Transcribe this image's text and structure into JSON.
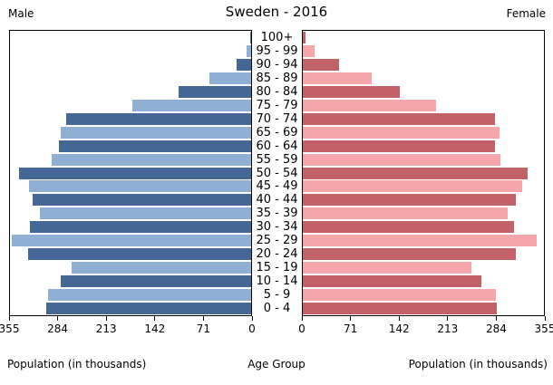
{
  "header": {
    "left": "Male",
    "title": "Sweden - 2016",
    "right": "Female"
  },
  "axis": {
    "ticks": [
      0,
      71,
      142,
      213,
      284,
      355
    ],
    "max": 355,
    "left_title": "Population (in thousands)",
    "center_title": "Age Group",
    "right_title": "Population (in thousands)"
  },
  "colors": {
    "male_dark": "#446795",
    "male_light": "#8fafd4",
    "female_dark": "#c26167",
    "female_light": "#f4a6ab",
    "axis_line": "#000000"
  },
  "chart_data": {
    "type": "bar",
    "subtype": "population-pyramid",
    "title": "Sweden - 2016",
    "xlabel": "Population (in thousands)",
    "center_axis_label": "Age Group",
    "xlim": [
      0,
      355
    ],
    "x_ticks": [
      0,
      71,
      142,
      213,
      284,
      355
    ],
    "grid": false,
    "categories": [
      "100+",
      "95 - 99",
      "90 - 94",
      "85 - 89",
      "80 - 84",
      "75 - 79",
      "70 - 74",
      "65 - 69",
      "60 - 64",
      "55 - 59",
      "50 - 54",
      "45 - 49",
      "40 - 44",
      "35 - 39",
      "30 - 34",
      "25 - 29",
      "20 - 24",
      "15 - 19",
      "10 - 14",
      "5 - 9",
      "0 - 4"
    ],
    "series": [
      {
        "name": "Male",
        "side": "left",
        "values": [
          1,
          7,
          22,
          61,
          107,
          175,
          272,
          280,
          283,
          294,
          342,
          327,
          322,
          311,
          325,
          352,
          328,
          264,
          280,
          299,
          302
        ]
      },
      {
        "name": "Female",
        "side": "right",
        "values": [
          4,
          17,
          54,
          102,
          143,
          196,
          283,
          289,
          283,
          291,
          331,
          323,
          314,
          301,
          311,
          344,
          313,
          248,
          263,
          284,
          285
        ]
      }
    ],
    "units": "thousands"
  }
}
